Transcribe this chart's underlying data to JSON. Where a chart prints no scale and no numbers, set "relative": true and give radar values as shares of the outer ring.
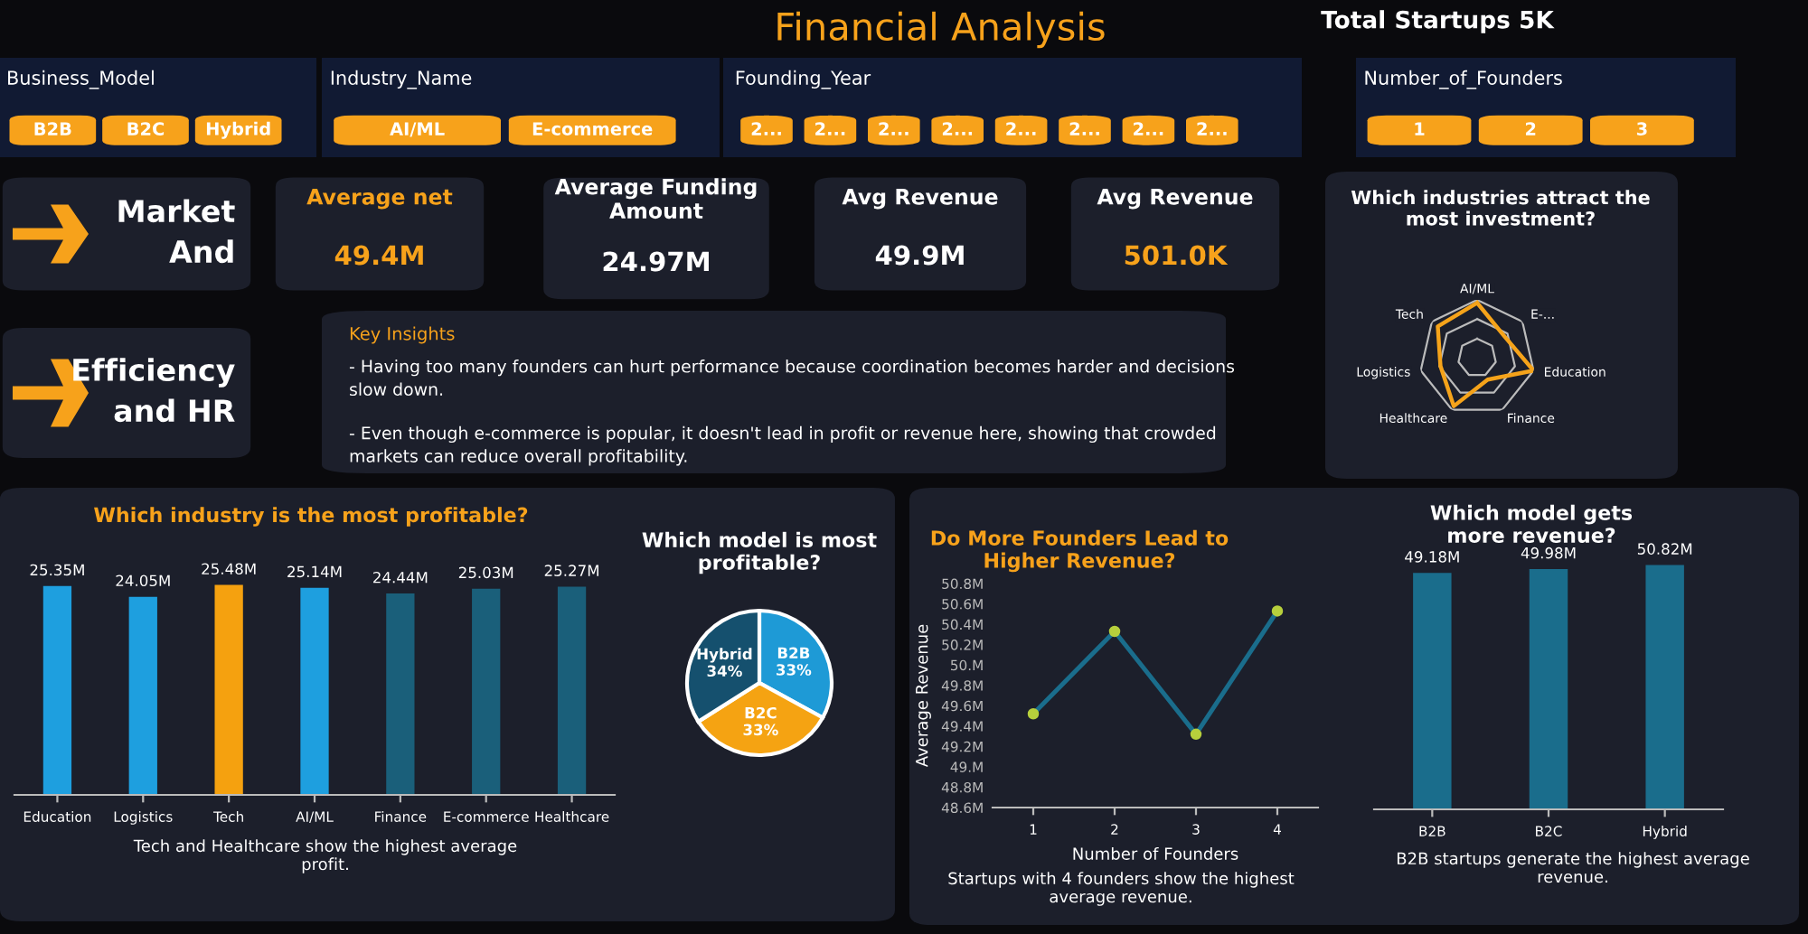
{
  "chart_data": [
    {
      "type": "other",
      "title": "Financial Analysis",
      "annotations": [
        "Total Startups 5K"
      ]
    },
    {
      "type": "other",
      "title": "Business_Model",
      "annotations": [
        "B2B",
        "B2C",
        "Hybrid"
      ]
    },
    {
      "type": "other",
      "title": "Industry_Name",
      "annotations": [
        "AI/ML",
        "E-commerce"
      ]
    },
    {
      "type": "other",
      "title": "Founding_Year",
      "annotations": [
        "2...",
        "2...",
        "2...",
        "2...",
        "2...",
        "2...",
        "2...",
        "2..."
      ]
    },
    {
      "type": "other",
      "title": "Number_of_Founders",
      "annotations": [
        "1",
        "2",
        "3"
      ]
    },
    {
      "type": "other",
      "title": "Market And"
    },
    {
      "type": "other",
      "title": "Efficiency and HR"
    },
    {
      "type": "other",
      "title": "Average net",
      "annotations": [
        "49.4M"
      ]
    },
    {
      "type": "other",
      "title": "Average Funding Amount",
      "annotations": [
        "24.97M"
      ]
    },
    {
      "type": "other",
      "title": "Avg Revenue",
      "annotations": [
        "49.9M"
      ]
    },
    {
      "type": "other",
      "title": "Avg Revenue",
      "annotations": [
        "501.0K"
      ]
    },
    {
      "type": "other",
      "title": "Key Insights",
      "annotations": [
        "- Having too many founders can hurt performance because coordination becomes harder and decisions slow down.",
        "- Even though e-commerce is popular, it doesn't lead in profit or revenue here, showing that crowded markets can reduce overall profitability."
      ]
    },
    {
      "type": "radar",
      "title": "Which industries attract the most investment?",
      "categories": [
        "AI/ML",
        "E-...",
        "Education",
        "Finance",
        "Healthcare",
        "Logistics",
        "Tech"
      ],
      "relative": true,
      "grid": true,
      "series": [
        {
          "color": "#f5a31a",
          "values": [
            0.95,
            0.6,
            1.0,
            0.42,
            0.93,
            0.65,
            0.87
          ]
        }
      ]
    },
    {
      "type": "bar",
      "title": "Which industry is the most profitable?",
      "categories": [
        "Education",
        "Logistics",
        "Tech",
        "AI/ML",
        "Finance",
        "E-commerce",
        "Healthcare"
      ],
      "values": [
        25.35,
        24.05,
        25.48,
        25.14,
        24.44,
        25.03,
        25.27
      ],
      "value_labels": [
        "25.35M",
        "24.05M",
        "25.48M",
        "25.14M",
        "24.44M",
        "25.03M",
        "25.27M"
      ],
      "colors": [
        "#1e9fdf",
        "#1e9fdf",
        "#f5a10f",
        "#1e9fdf",
        "#1a5f7a",
        "#1a5f7a",
        "#1a5f7a"
      ],
      "tick_labels": "x",
      "annotations": [
        "Tech and Healthcare show the highest average profit."
      ]
    },
    {
      "type": "pie",
      "title": "Which model is most profitable?",
      "categories": [
        "B2B",
        "B2C",
        "Hybrid"
      ],
      "values": [
        33,
        33,
        34
      ],
      "value_labels": [
        "33%",
        "33%",
        "34%"
      ],
      "colors": [
        "#1e9ad6",
        "#f5a312",
        "#15506e"
      ]
    },
    {
      "type": "line",
      "title": "Do More Founders Lead to Higher Revenue?",
      "x": [
        1,
        2,
        3,
        4
      ],
      "xlabel": "Number of Founders",
      "ylabel": "Average Revenue",
      "series": [
        {
          "color": "#1a6d8c",
          "values": [
            49.52,
            50.33,
            49.32,
            50.53
          ]
        }
      ],
      "marker": "circle",
      "xlim": [
        0.5,
        4.5
      ],
      "xticks": [
        1,
        2,
        3,
        4
      ],
      "ylim": [
        48.6,
        50.8
      ],
      "yticks": [
        {
          "value": 48.6,
          "label": "48.6M"
        },
        {
          "value": 48.8,
          "label": "48.8M"
        },
        {
          "value": 49.0,
          "label": "49.M"
        },
        {
          "value": 49.2,
          "label": "49.2M"
        },
        {
          "value": 49.4,
          "label": "49.4M"
        },
        {
          "value": 49.6,
          "label": "49.6M"
        },
        {
          "value": 49.8,
          "label": "49.8M"
        },
        {
          "value": 50.0,
          "label": "50.M"
        },
        {
          "value": 50.2,
          "label": "50.2M"
        },
        {
          "value": 50.4,
          "label": "50.4M"
        },
        {
          "value": 50.6,
          "label": "50.6M"
        },
        {
          "value": 50.8,
          "label": "50.8M"
        }
      ],
      "annotations": [
        "Startups with 4 founders show the highest average revenue."
      ]
    },
    {
      "type": "bar",
      "title": "Which model gets more revenue?",
      "categories": [
        "B2B",
        "B2C",
        "Hybrid"
      ],
      "values": [
        49.18,
        49.98,
        50.82
      ],
      "value_labels": [
        "49.18M",
        "49.98M",
        "50.82M"
      ],
      "colors": [
        "#1a6d8c",
        "#1a6d8c",
        "#1a6d8c"
      ],
      "tick_labels": "x",
      "annotations": [
        "B2B startups generate the highest average revenue."
      ]
    }
  ]
}
